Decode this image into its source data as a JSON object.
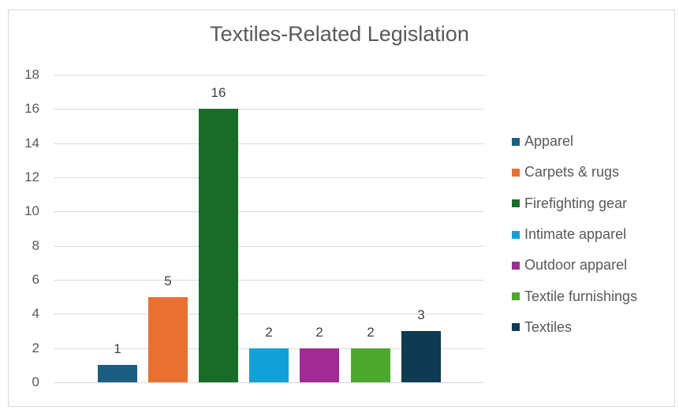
{
  "chart_data": {
    "type": "bar",
    "title": "Textiles-Related Legislation",
    "xlabel": "",
    "ylabel": "",
    "ylim": [
      0,
      18
    ],
    "yticks": [
      0,
      2,
      4,
      6,
      8,
      10,
      12,
      14,
      16,
      18
    ],
    "grid": true,
    "legend_position": "right",
    "categories": [
      "Apparel",
      "Carpets & rugs",
      "Firefighting gear",
      "Intimate apparel",
      "Outdoor apparel",
      "Textile furnishings",
      "Textiles"
    ],
    "values": [
      1,
      5,
      16,
      2,
      2,
      2,
      3
    ],
    "colors": [
      "#1b5e82",
      "#e97132",
      "#1a6b27",
      "#12a0d7",
      "#a02b93",
      "#4ea72e",
      "#0e3a52"
    ],
    "data_labels": [
      "1",
      "5",
      "16",
      "2",
      "2",
      "2",
      "3"
    ]
  }
}
